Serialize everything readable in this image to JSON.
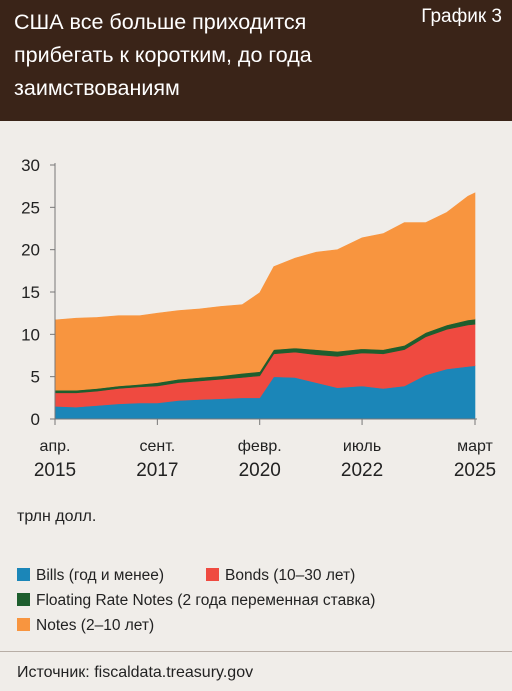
{
  "header": {
    "title": "США все больше приходится\nприбегать к коротким, до года\nзаимствованиям",
    "tag": "График 3"
  },
  "units_label": "трлн долл.",
  "source": "Источник: fiscaldata.treasury.gov",
  "colors": {
    "header_bg": "#3a2418",
    "bills": "#1b86b8",
    "bonds": "#ef4a40",
    "frn": "#1e5e2e",
    "notes": "#f8953f",
    "background": "#f0ede9"
  },
  "legend": [
    {
      "label": "Bills (год и менее)",
      "color": "#1b86b8"
    },
    {
      "label": "Bonds (10–30 лет)",
      "color": "#ef4a40"
    },
    {
      "label": "Floating Rate Notes (2 года переменная ставка)",
      "color": "#1e5e2e"
    },
    {
      "label": "Notes (2–10 лет)",
      "color": "#f8953f"
    }
  ],
  "chart_data": {
    "type": "area",
    "stacked": true,
    "x": [
      "2015-04",
      "2015-10",
      "2016-04",
      "2016-10",
      "2017-04",
      "2017-09",
      "2018-03",
      "2018-09",
      "2019-03",
      "2019-09",
      "2020-02",
      "2020-06",
      "2020-12",
      "2021-06",
      "2021-12",
      "2022-07",
      "2023-01",
      "2023-07",
      "2024-01",
      "2024-07",
      "2025-01",
      "2025-03"
    ],
    "series": [
      {
        "name": "Bills (год и менее)",
        "values": [
          1.5,
          1.4,
          1.6,
          1.8,
          1.9,
          1.9,
          2.2,
          2.3,
          2.4,
          2.5,
          2.5,
          5.0,
          4.9,
          4.3,
          3.7,
          3.9,
          3.6,
          3.9,
          5.2,
          5.9,
          6.2,
          6.3
        ]
      },
      {
        "name": "Bonds (10–30 лет)",
        "values": [
          1.6,
          1.7,
          1.7,
          1.8,
          1.9,
          2.0,
          2.1,
          2.2,
          2.3,
          2.4,
          2.6,
          2.7,
          3.0,
          3.3,
          3.7,
          3.9,
          4.1,
          4.3,
          4.5,
          4.7,
          4.9,
          4.9
        ]
      },
      {
        "name": "Floating Rate Notes (2 года переменная ставка)",
        "values": [
          0.3,
          0.3,
          0.3,
          0.3,
          0.3,
          0.4,
          0.4,
          0.4,
          0.4,
          0.5,
          0.5,
          0.5,
          0.5,
          0.6,
          0.6,
          0.5,
          0.5,
          0.5,
          0.5,
          0.5,
          0.6,
          0.6
        ]
      },
      {
        "name": "Notes (2–10 лет)",
        "values": [
          8.3,
          8.5,
          8.4,
          8.3,
          8.1,
          8.2,
          8.1,
          8.1,
          8.2,
          8.1,
          9.3,
          9.8,
          10.6,
          11.5,
          12.0,
          13.1,
          13.7,
          14.5,
          13.0,
          13.3,
          14.6,
          14.9
        ]
      }
    ],
    "ylim": [
      0,
      30
    ],
    "yticks": [
      "0",
      "5",
      "10",
      "15",
      "20",
      "25",
      "30"
    ],
    "xlim": [
      "2015-04",
      "2025-03"
    ],
    "xticks": [
      {
        "x": "2015-04",
        "month": "апр.",
        "year": "2015"
      },
      {
        "x": "2017-09",
        "month": "сент.",
        "year": "2017"
      },
      {
        "x": "2020-02",
        "month": "февр.",
        "year": "2020"
      },
      {
        "x": "2022-07",
        "month": "июль",
        "year": "2022"
      },
      {
        "x": "2025-03",
        "month": "март",
        "year": "2025"
      }
    ],
    "grid": false
  }
}
